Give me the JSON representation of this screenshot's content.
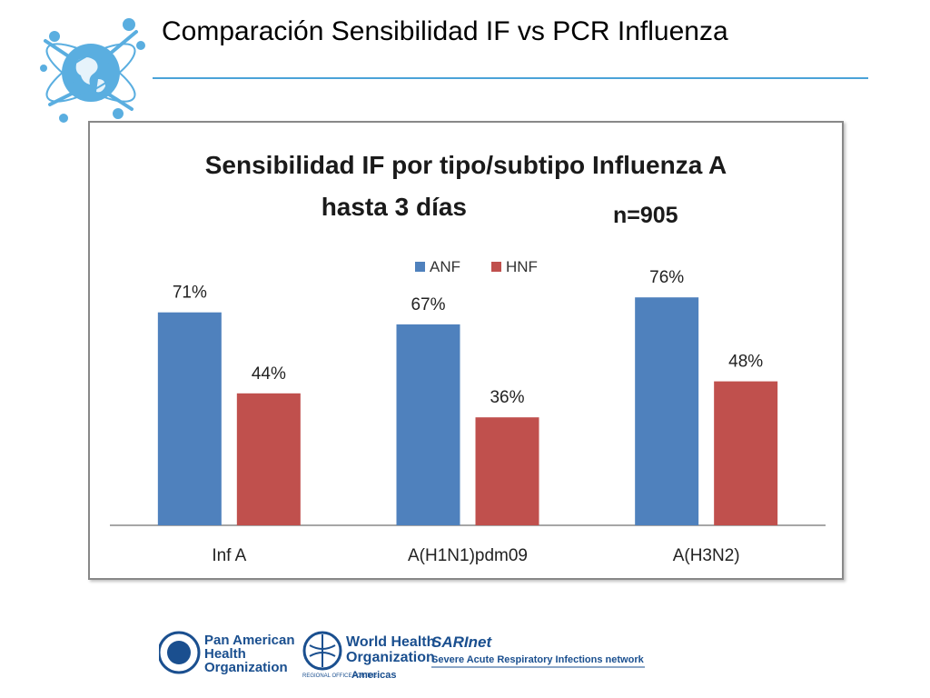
{
  "slide": {
    "title": "Comparación Sensibilidad IF vs PCR Influenza"
  },
  "colors": {
    "accent_rule": "#4aa3d8",
    "anf": "#4f81bd",
    "hnf": "#c0504d"
  },
  "chart_data": {
    "type": "bar",
    "title_line1": "Sensibilidad IF por tipo/subtipo Influenza A",
    "title_line2": "hasta 3  días",
    "annotation": "n=905",
    "categories": [
      "Inf A",
      "A(H1N1)pdm09",
      "A(H3N2)"
    ],
    "series": [
      {
        "name": "ANF",
        "values": [
          71,
          67,
          76
        ],
        "labels": [
          "71%",
          "67%",
          "76%"
        ],
        "color": "#4f81bd"
      },
      {
        "name": "HNF",
        "values": [
          44,
          36,
          48
        ],
        "labels": [
          "44%",
          "36%",
          "48%"
        ],
        "color": "#c0504d"
      }
    ],
    "ylim": [
      0,
      100
    ],
    "grid": false,
    "legend_position": "top-center"
  },
  "footer": {
    "paho_line1": "Pan American",
    "paho_line2": "Health",
    "paho_line3": "Organization",
    "who_line1": "World Health",
    "who_line2": "Organization",
    "who_regional": "REGIONAL OFFICE FOR THE",
    "who_americas": "Americas",
    "sari_brand": "SARInet",
    "sari_caption": "Severe Acute Respiratory Infections network"
  }
}
